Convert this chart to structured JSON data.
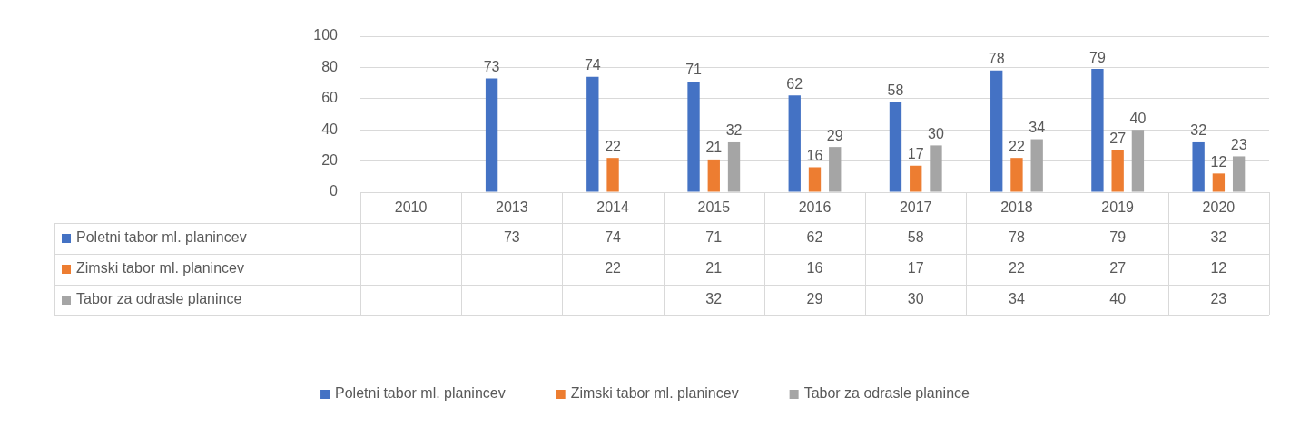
{
  "chart_data": {
    "type": "bar",
    "categories": [
      "2010",
      "2013",
      "2014",
      "2015",
      "2016",
      "2017",
      "2018",
      "2019",
      "2020"
    ],
    "series": [
      {
        "name": "Poletni tabor ml. planincev",
        "color": "#4472c4",
        "values": [
          null,
          73,
          74,
          71,
          62,
          58,
          78,
          79,
          32
        ],
        "value_labels": [
          null,
          "73",
          "74",
          "71",
          "62",
          "58",
          "78",
          "79",
          "32"
        ]
      },
      {
        "name": "Zimski tabor ml. planincev",
        "color": "#ed7d31",
        "values": [
          null,
          null,
          22,
          21,
          16,
          17,
          22,
          27,
          12
        ],
        "value_labels": [
          null,
          null,
          "22",
          "21",
          "16",
          "17",
          "22",
          "27",
          "12"
        ]
      },
      {
        "name": "Tabor za odrasle planince",
        "color": "#a5a5a5",
        "values": [
          null,
          null,
          null,
          32,
          29,
          30,
          34,
          40,
          23
        ],
        "value_labels": [
          null,
          null,
          null,
          "32",
          "29",
          "30",
          "34",
          "40",
          "23"
        ]
      }
    ],
    "annotations": [
      "73",
      "74",
      "71",
      "62",
      "58",
      "78",
      "79",
      "32",
      "22",
      "21",
      "16",
      "17",
      "22",
      "27",
      "12",
      "32",
      "29",
      "30",
      "34",
      "40",
      "23"
    ],
    "ylim": [
      0,
      100
    ],
    "yticks": [
      0,
      20,
      40,
      60,
      80,
      100
    ],
    "grid": "y",
    "legend": "bottom",
    "data_labels": true
  }
}
